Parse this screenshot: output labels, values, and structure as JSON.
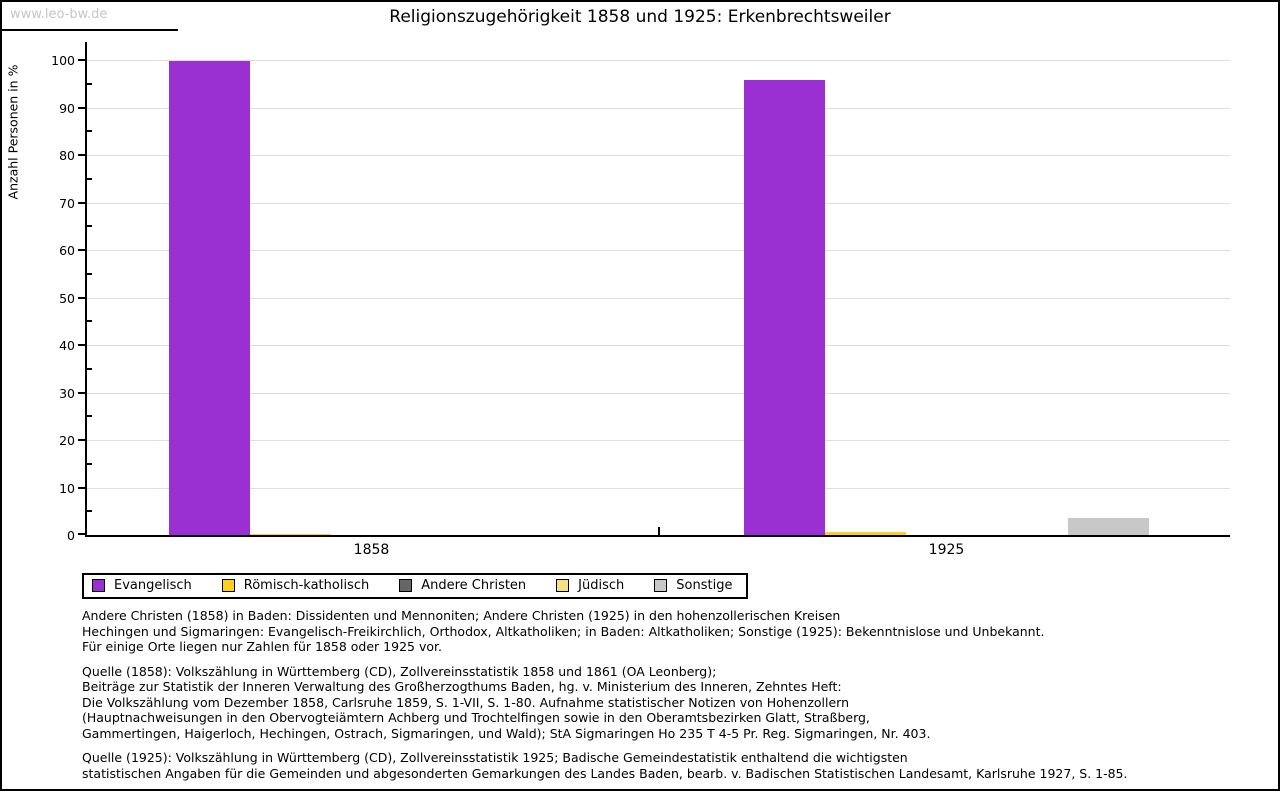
{
  "watermark": "www.leo-bw.de",
  "title": "Religionszugehörigkeit 1858 und 1925: Erkenbrechtsweiler",
  "chart_data": {
    "type": "bar",
    "title": "Religionszugehörigkeit 1858 und 1925: Erkenbrechtsweiler",
    "ylabel": "Anzahl Personen in %",
    "xlabel": "",
    "ylim": [
      0,
      100
    ],
    "ytick_step": 10,
    "grid": true,
    "legend_position": "bottom",
    "categories": [
      "1858",
      "1925"
    ],
    "series": [
      {
        "name": "Evangelisch",
        "color": "#9a30d1",
        "values": [
          99.8,
          95.7
        ]
      },
      {
        "name": "Römisch-katholisch",
        "color": "#fdd020",
        "values": [
          0.2,
          0.6
        ]
      },
      {
        "name": "Andere Christen",
        "color": "#666666",
        "values": [
          0,
          0
        ]
      },
      {
        "name": "Jüdisch",
        "color": "#f6e07f",
        "values": [
          0,
          0
        ]
      },
      {
        "name": "Sonstige",
        "color": "#c8c8c8",
        "values": [
          0,
          3.6
        ]
      }
    ]
  },
  "footnotes": {
    "note": [
      "Andere Christen (1858) in Baden: Dissidenten und Mennoniten; Andere Christen (1925) in den hohenzollerischen Kreisen",
      "Hechingen und Sigmaringen: Evangelisch-Freikirchlich, Orthodox, Altkatholiken; in Baden: Altkatholiken; Sonstige (1925): Bekenntnislose und Unbekannt.",
      "Für einige Orte liegen nur Zahlen für 1858 oder 1925 vor."
    ],
    "source_1858": [
      "Quelle (1858): Volkszählung in Württemberg (CD), Zollvereinsstatistik 1858 und 1861 (OA Leonberg);",
      "Beiträge zur Statistik der Inneren Verwaltung des Großherzogthums Baden, hg. v. Ministerium des Inneren, Zehntes Heft:",
      "Die Volkszählung vom Dezember 1858, Carlsruhe 1859, S. 1-VII, S. 1-80. Aufnahme statistischer Notizen von Hohenzollern",
      "(Hauptnachweisungen in den Obervogteiämtern Achberg und Trochtelfingen sowie in den Oberamtsbezirken Glatt, Straßberg,",
      "Gammertingen, Haigerloch, Hechingen, Ostrach, Sigmaringen, und Wald); StA Sigmaringen Ho 235 T 4-5 Pr. Reg. Sigmaringen, Nr. 403."
    ],
    "source_1925": [
      "Quelle (1925): Volkszählung in Württemberg (CD), Zollvereinsstatistik 1925; Badische Gemeindestatistik enthaltend die wichtigsten",
      "statistischen Angaben für die Gemeinden und abgesonderten Gemarkungen des Landes Baden, bearb. v. Badischen Statistischen Landesamt, Karlsruhe 1927, S. 1-85."
    ]
  }
}
